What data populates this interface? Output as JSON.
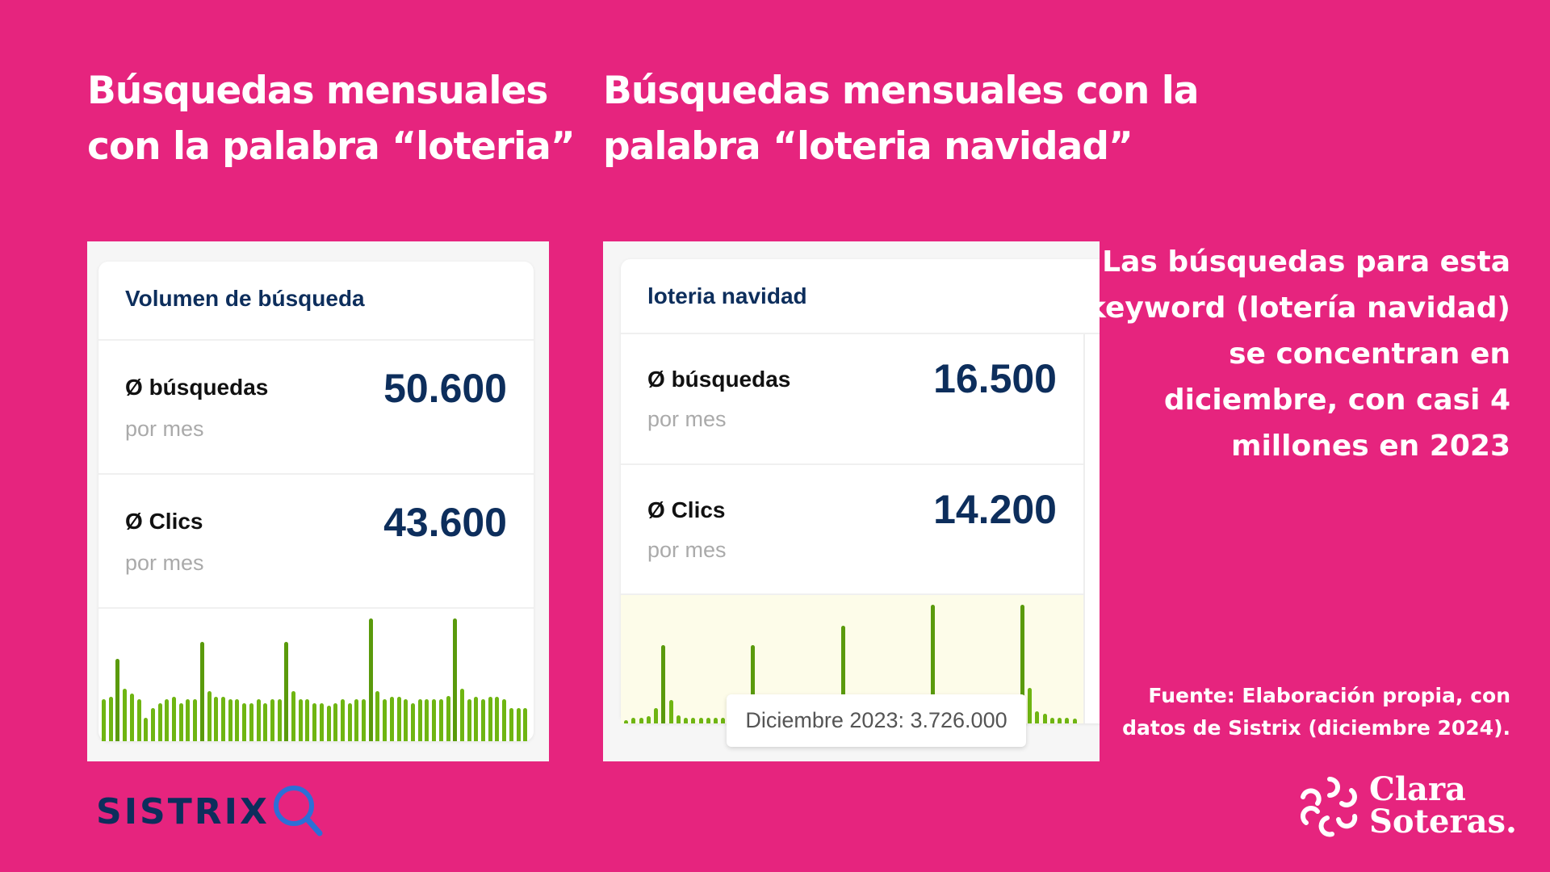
{
  "titles": {
    "left": [
      "Búsquedas mensuales",
      "con la palabra “loteria”"
    ],
    "right": [
      "Búsquedas mensuales con la",
      "palabra “loteria navidad”"
    ]
  },
  "left_card": {
    "header": "Volumen de búsqueda",
    "rows": [
      {
        "label": "búsquedas",
        "sub": "por mes",
        "value": "50.600"
      },
      {
        "label": "Clics",
        "sub": "por mes",
        "value": "43.600"
      }
    ],
    "avg_symbol": "Ø"
  },
  "right_card": {
    "header": "loteria navidad",
    "rows": [
      {
        "label": "búsquedas",
        "sub": "por mes",
        "value": "16.500"
      },
      {
        "label": "Clics",
        "sub": "por mes",
        "value": "14.200"
      }
    ],
    "avg_symbol": "Ø",
    "tooltip": "Diciembre 2023: 3.726.000"
  },
  "side_text": [
    "Las búsquedas para  esta",
    "keyword (lotería navidad)",
    "se concentran en",
    "diciembre, con casi 4",
    "millones en 2023"
  ],
  "source": [
    "Fuente: Elaboración propia, con",
    "datos de Sistrix (diciembre 2024)."
  ],
  "logos": {
    "sistrix": "SISTRIX",
    "author": [
      "Clara",
      "Soteras."
    ]
  },
  "colors": {
    "background": "#e6247e",
    "navy": "#0d2e5c",
    "bar": "#6fb512",
    "bar_peak": "#5a9a0c",
    "chart_highlight": "#fdfce9"
  },
  "chart_data": [
    {
      "type": "bar",
      "title": "",
      "unit": "relative (% of max)",
      "values": [
        34,
        36,
        67,
        43,
        39,
        34,
        19,
        27,
        31,
        34,
        36,
        31,
        34,
        34,
        81,
        41,
        36,
        36,
        34,
        34,
        31,
        31,
        34,
        31,
        34,
        34,
        81,
        41,
        34,
        34,
        31,
        31,
        29,
        31,
        34,
        31,
        34,
        34,
        100,
        41,
        34,
        36,
        36,
        34,
        31,
        34,
        34,
        34,
        34,
        37,
        100,
        43,
        34,
        36,
        34,
        36,
        36,
        34,
        27,
        27,
        27
      ]
    },
    {
      "type": "bar",
      "title": "",
      "unit": "relative (% of max)",
      "values": [
        3,
        5,
        5,
        6,
        13,
        66,
        20,
        7,
        5,
        5,
        5,
        5,
        5,
        5,
        5,
        6,
        8,
        66,
        12,
        6,
        5,
        5,
        5,
        5,
        5,
        5,
        5,
        6,
        8,
        82,
        14,
        6,
        5,
        5,
        5,
        5,
        5,
        5,
        5,
        6,
        9,
        100,
        16,
        6,
        5,
        5,
        5,
        5,
        5,
        5,
        5,
        6,
        9,
        100,
        30,
        10,
        8,
        5,
        5,
        5,
        4
      ]
    }
  ]
}
